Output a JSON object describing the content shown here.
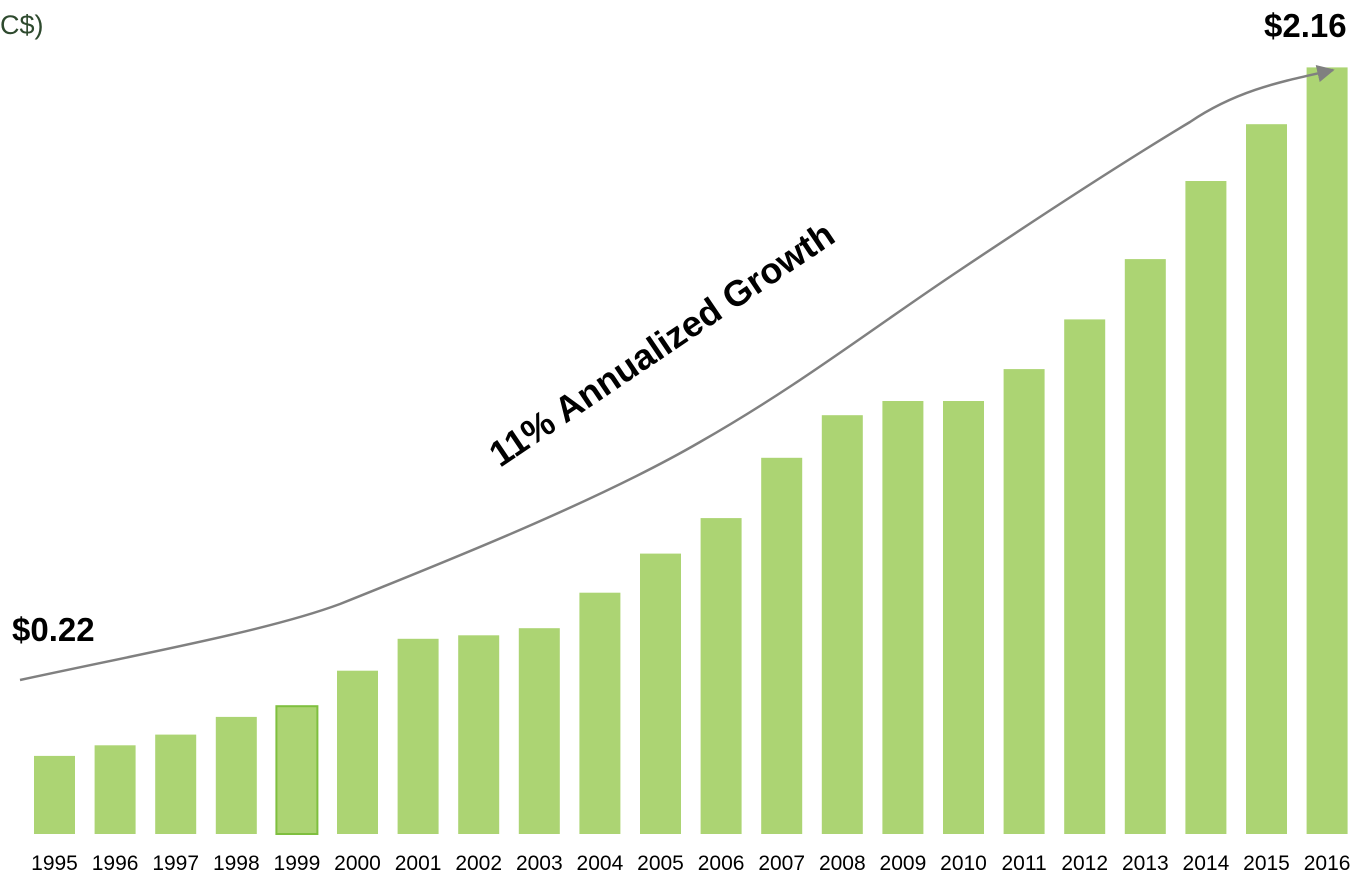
{
  "title_fragment": "C$)",
  "chart_data": {
    "type": "bar",
    "categories": [
      "1995",
      "1996",
      "1997",
      "1998",
      "1999",
      "2000",
      "2001",
      "2002",
      "2003",
      "2004",
      "2005",
      "2006",
      "2007",
      "2008",
      "2009",
      "2010",
      "2011",
      "2012",
      "2013",
      "2014",
      "2015",
      "2016"
    ],
    "values": [
      0.22,
      0.25,
      0.28,
      0.33,
      0.36,
      0.46,
      0.55,
      0.56,
      0.58,
      0.68,
      0.79,
      0.89,
      1.06,
      1.18,
      1.22,
      1.22,
      1.31,
      1.45,
      1.62,
      1.84,
      2.0,
      2.16
    ],
    "ylim": [
      0,
      2.35
    ],
    "colors": {
      "bar": "#acd473",
      "highlight_outline": "#7fbf3f",
      "trend_line": "#808080"
    },
    "highlighted_category": "1999",
    "annotations": {
      "start_value": "$0.22",
      "end_value": "$2.16",
      "growth": "11% Annualized Growth"
    },
    "legend": "none",
    "grid": false
  }
}
